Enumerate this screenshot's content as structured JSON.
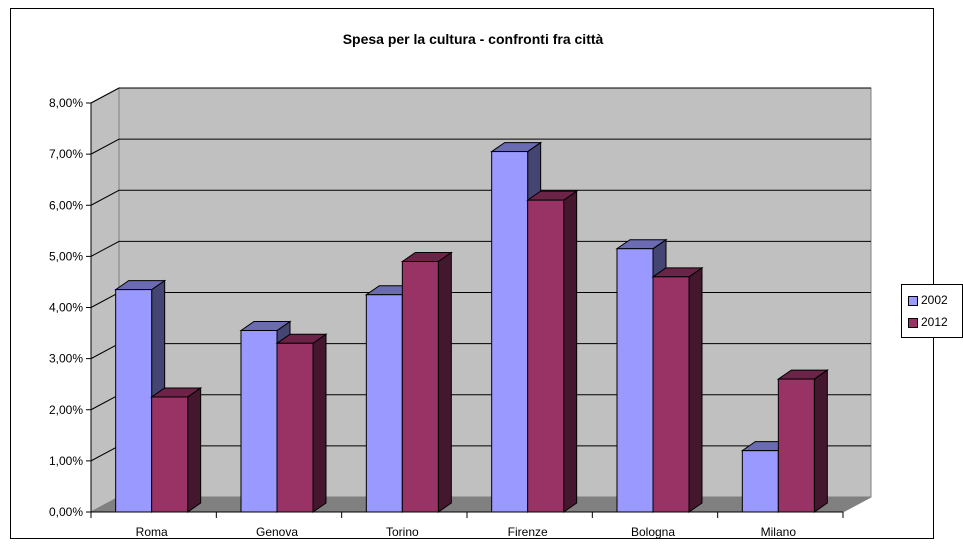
{
  "chart_data": {
    "type": "bar",
    "title": "Spesa per la cultura - confronti fra città",
    "categories": [
      "Roma",
      "Genova",
      "Torino",
      "Firenze",
      "Bologna",
      "Milano"
    ],
    "series": [
      {
        "name": "2002",
        "values": [
          4.35,
          3.55,
          4.25,
          7.05,
          5.15,
          1.2
        ],
        "color": "#9999ff"
      },
      {
        "name": "2012",
        "values": [
          2.25,
          3.3,
          4.9,
          6.1,
          4.6,
          2.6
        ],
        "color": "#993366"
      }
    ],
    "ylim": [
      0,
      8
    ],
    "ytick_labels": [
      "0,00%",
      "1,00%",
      "2,00%",
      "3,00%",
      "4,00%",
      "5,00%",
      "6,00%",
      "7,00%",
      "8,00%"
    ],
    "grid": true,
    "legend_position": "right"
  }
}
